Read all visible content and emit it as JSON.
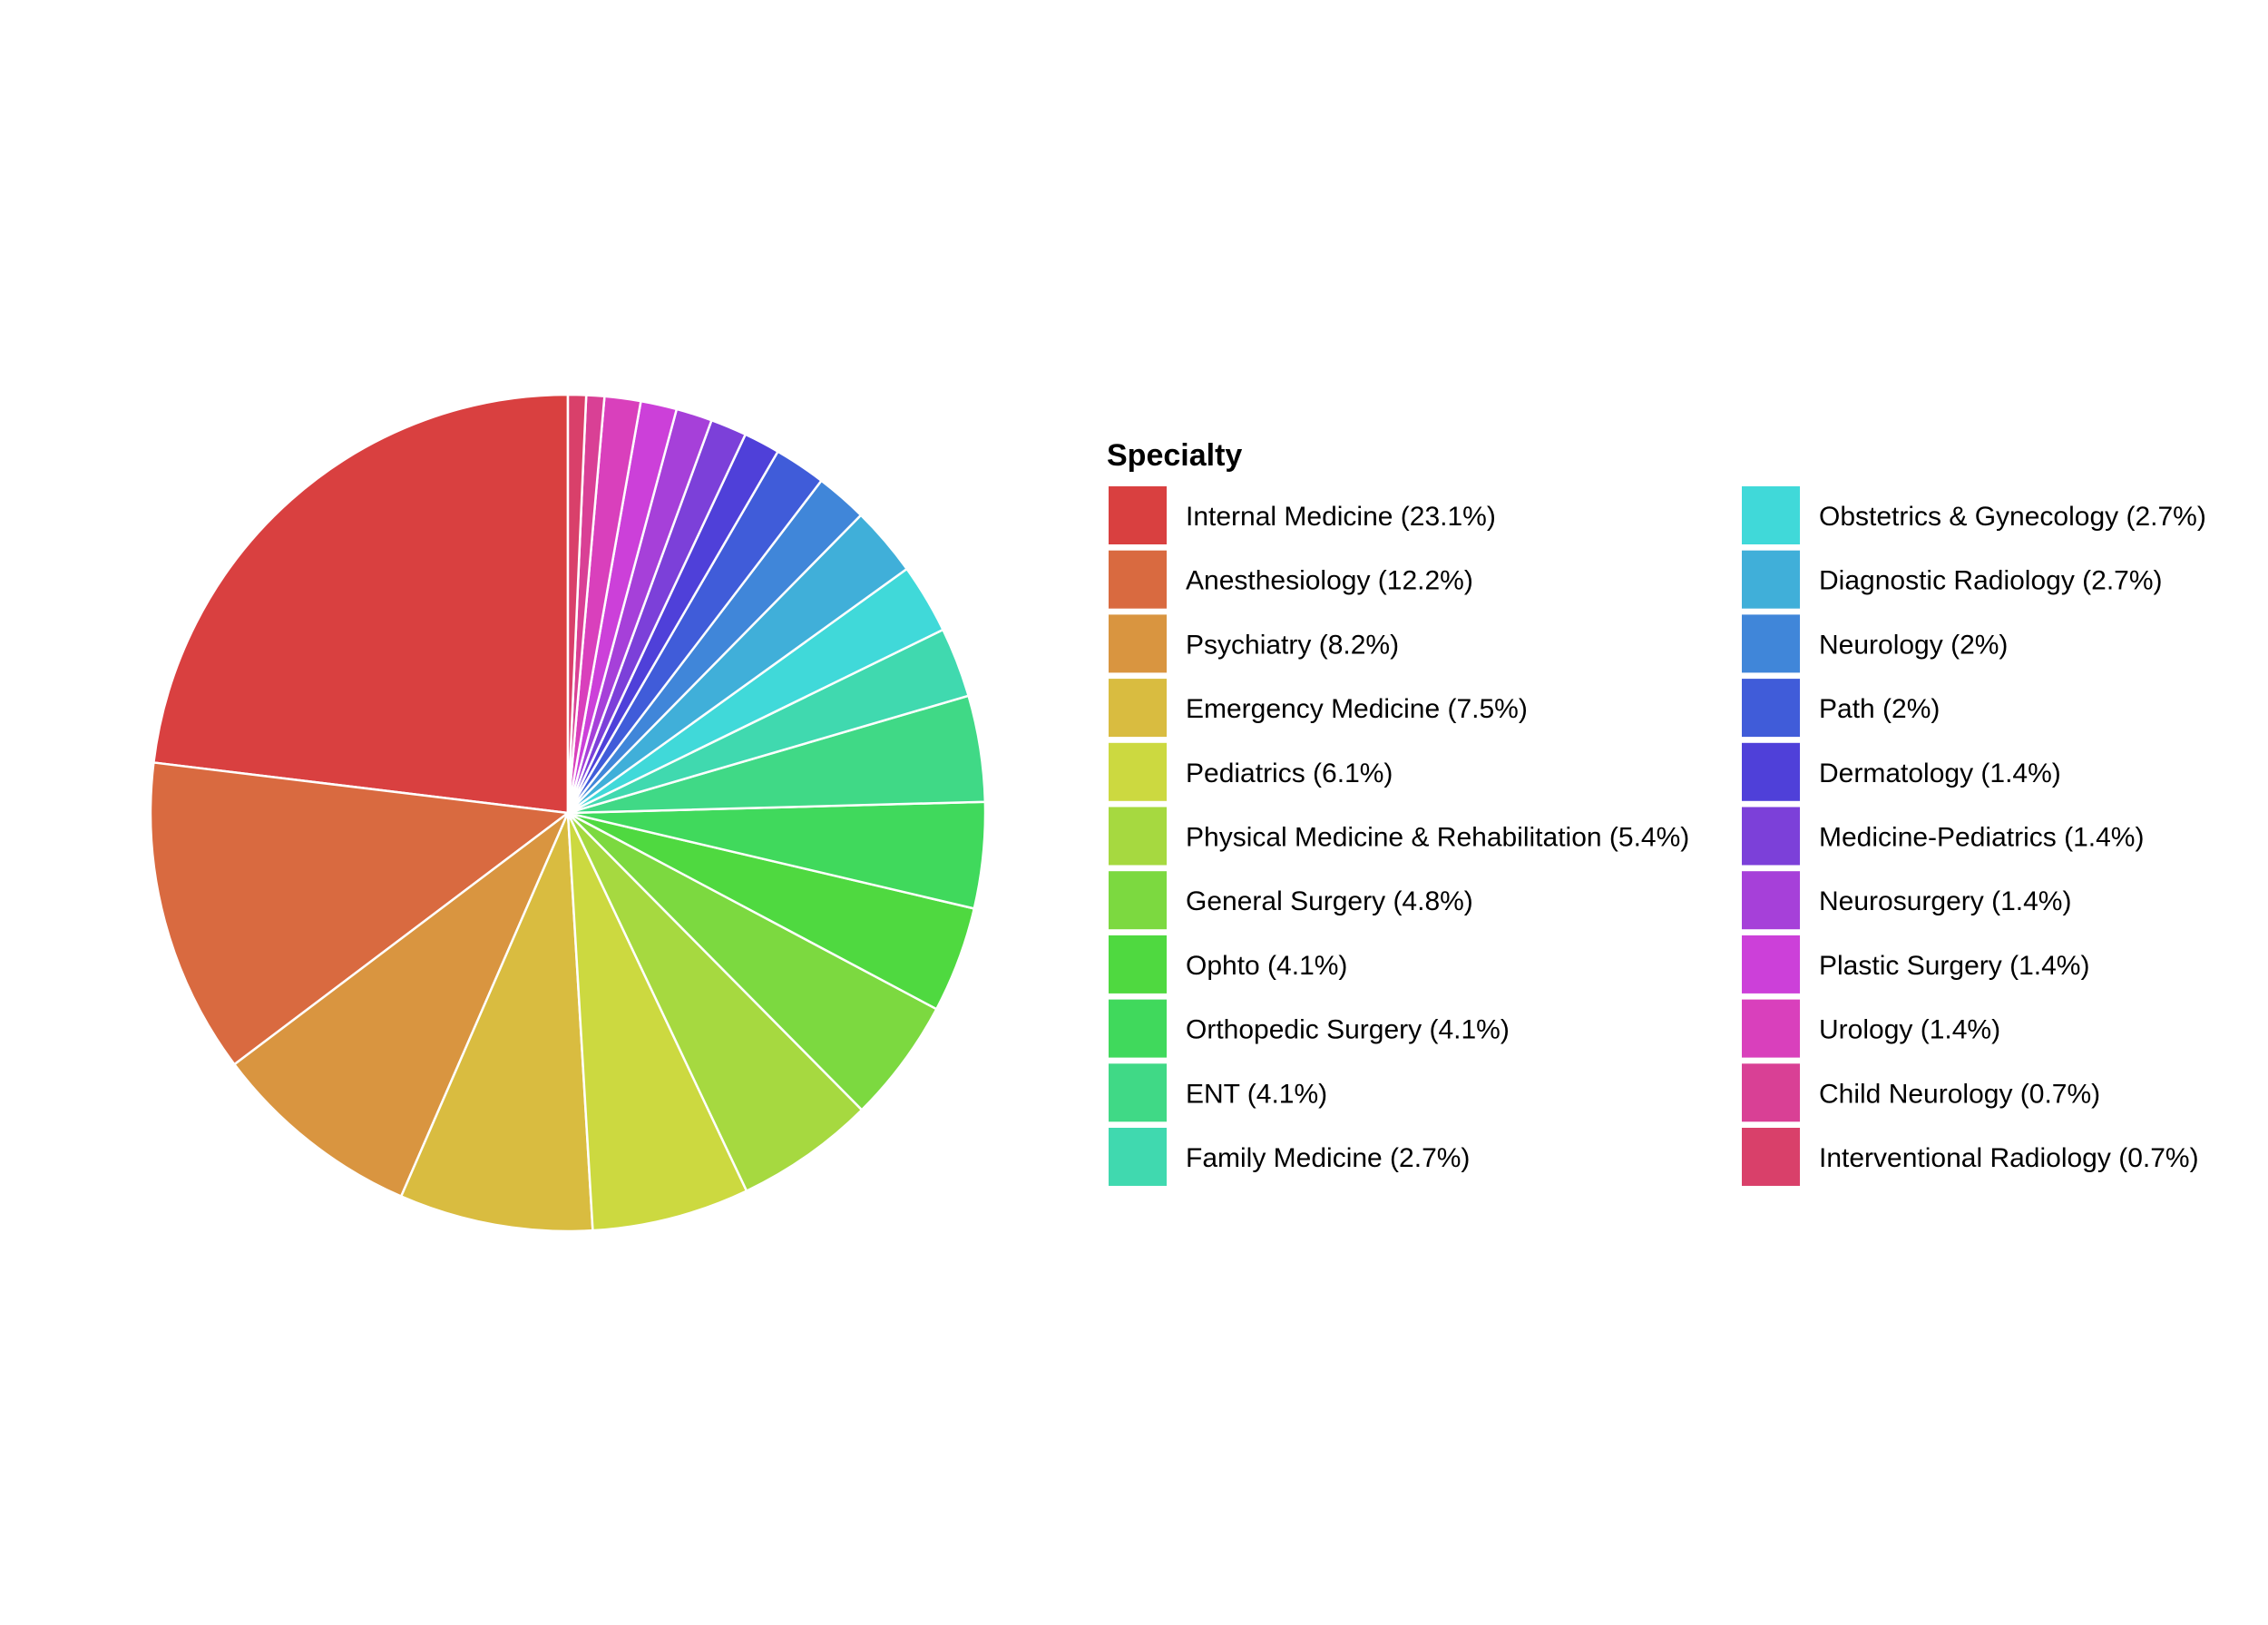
{
  "chart_data": {
    "type": "pie",
    "legend": {
      "title": "Specialty",
      "placement": "right",
      "columns": 2
    },
    "start_angle_deg": 0,
    "direction": "counterclockwise",
    "slices": [
      {
        "label": "Internal Medicine (23.1%)",
        "value": 23.1,
        "color": "#D94040"
      },
      {
        "label": "Anesthesiology (12.2%)",
        "value": 12.2,
        "color": "#D96A40"
      },
      {
        "label": "Psychiatry (8.2%)",
        "value": 8.2,
        "color": "#D99540"
      },
      {
        "label": "Emergency Medicine (7.5%)",
        "value": 7.5,
        "color": "#D9BC40"
      },
      {
        "label": "Pediatrics (6.1%)",
        "value": 6.1,
        "color": "#CCD940"
      },
      {
        "label": "Physical Medicine & Rehabilitation (5.4%)",
        "value": 5.4,
        "color": "#A6D940"
      },
      {
        "label": "General Surgery (4.8%)",
        "value": 4.8,
        "color": "#7CD940"
      },
      {
        "label": "Ophto (4.1%)",
        "value": 4.1,
        "color": "#4FD940"
      },
      {
        "label": "Orthopedic Surgery (4.1%)",
        "value": 4.1,
        "color": "#40D95C"
      },
      {
        "label": "ENT (4.1%)",
        "value": 4.1,
        "color": "#40D986"
      },
      {
        "label": "Family Medicine (2.7%)",
        "value": 2.7,
        "color": "#40D9AF"
      },
      {
        "label": "Obstetrics & Gynecology (2.7%)",
        "value": 2.7,
        "color": "#40D9D9"
      },
      {
        "label": "Diagnostic Radiology (2.7%)",
        "value": 2.7,
        "color": "#40AFD9"
      },
      {
        "label": "Neurology (2%)",
        "value": 2.0,
        "color": "#4086D9"
      },
      {
        "label": "Path (2%)",
        "value": 2.0,
        "color": "#405CD9"
      },
      {
        "label": "Dermatology (1.4%)",
        "value": 1.4,
        "color": "#4F40D9"
      },
      {
        "label": "Medicine-Pediatrics (1.4%)",
        "value": 1.4,
        "color": "#7C40D9"
      },
      {
        "label": "Neurosurgery (1.4%)",
        "value": 1.4,
        "color": "#A640D9"
      },
      {
        "label": "Plastic Surgery (1.4%)",
        "value": 1.4,
        "color": "#CC40D9"
      },
      {
        "label": "Urology (1.4%)",
        "value": 1.4,
        "color": "#D940BC"
      },
      {
        "label": "Child Neurology (0.7%)",
        "value": 0.7,
        "color": "#D94095"
      },
      {
        "label": "Interventional Radiology (0.7%)",
        "value": 0.7,
        "color": "#D9406A"
      }
    ]
  }
}
